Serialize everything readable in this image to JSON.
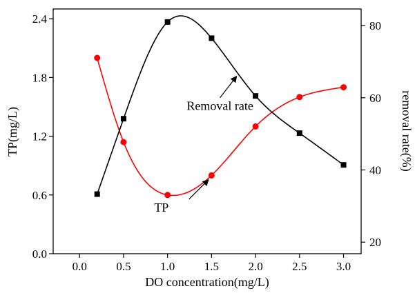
{
  "chart_data": {
    "type": "line",
    "x": [
      0.2,
      0.5,
      1.0,
      1.5,
      2.0,
      2.5,
      3.0
    ],
    "xlabel": "DO concentration(mg/L)",
    "xlim": [
      -0.3,
      3.2
    ],
    "xticks": [
      0.0,
      0.5,
      1.0,
      1.5,
      2.0,
      2.5,
      3.0
    ],
    "xtick_labels": [
      "0.0",
      "0.5",
      "1.0",
      "1.5",
      "2.0",
      "2.5",
      "3.0"
    ],
    "y_left": {
      "label": "TP(mg/L)",
      "lim": [
        0.0,
        2.5
      ],
      "ticks": [
        0.0,
        0.6,
        1.2,
        1.8,
        2.4
      ],
      "tick_labels": [
        "0.0",
        "0.6",
        "1.2",
        "1.8",
        "2.4"
      ]
    },
    "y_right": {
      "label": "removal rate(%)",
      "lim": [
        16.8,
        84.6
      ],
      "ticks": [
        20,
        40,
        60,
        80
      ],
      "tick_labels": [
        "20",
        "40",
        "60",
        "80"
      ]
    },
    "series": [
      {
        "name": "TP",
        "axis": "left",
        "color": "#ff0000",
        "marker": "circle",
        "values": [
          2.0,
          1.14,
          0.6,
          0.8,
          1.3,
          1.6,
          1.7
        ]
      },
      {
        "name": "Removal rate",
        "axis": "right",
        "color": "#000000",
        "marker": "square",
        "values": [
          33.3,
          54.2,
          81.0,
          76.5,
          60.5,
          50.2,
          41.4
        ]
      }
    ],
    "annotations": [
      {
        "text": "Removal rate",
        "series": "Removal rate",
        "at_x": 1.8
      },
      {
        "text": "TP",
        "series": "TP",
        "at_x": 1.48
      }
    ],
    "grid": false,
    "legend": "none"
  }
}
